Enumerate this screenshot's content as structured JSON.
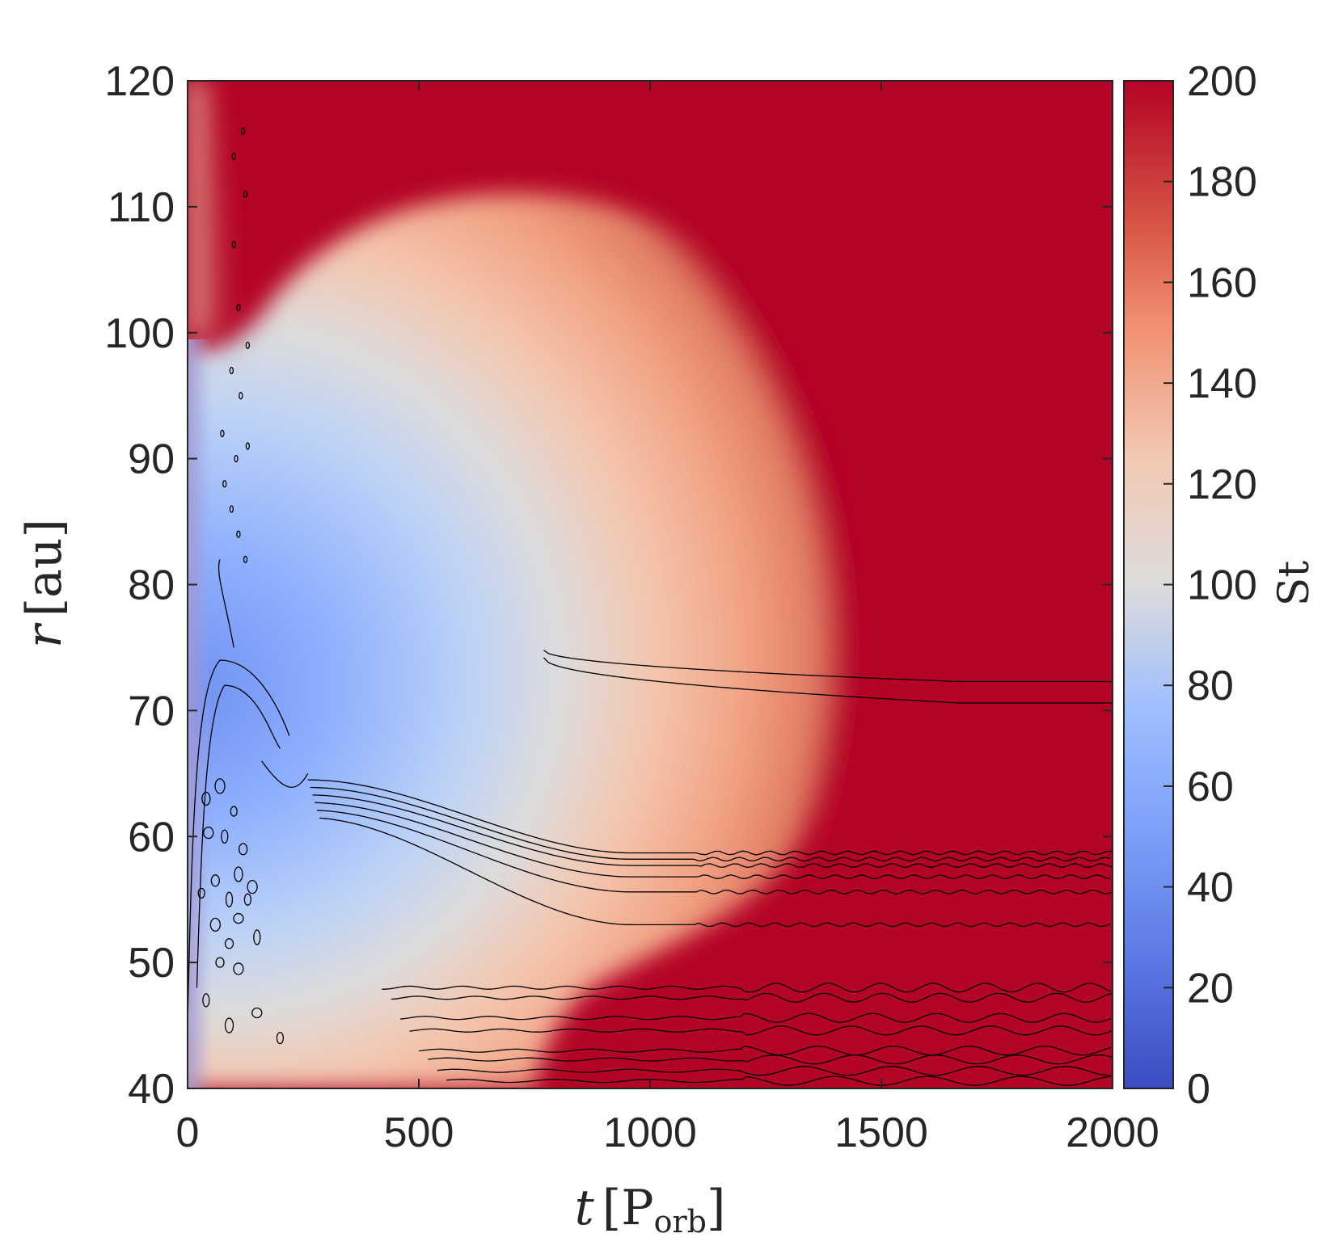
{
  "chart_data": {
    "type": "heatmap",
    "xlabel": {
      "symbol": "t",
      "unit_main": "P",
      "unit_sub": "orb"
    },
    "ylabel": {
      "symbol": "r",
      "unit": "au"
    },
    "xlim": [
      0,
      2000
    ],
    "ylim": [
      40,
      120
    ],
    "xticks": [
      0,
      500,
      1000,
      1500,
      2000
    ],
    "yticks": [
      40,
      50,
      60,
      70,
      80,
      90,
      100,
      110,
      120
    ],
    "colorbar": {
      "label": "St",
      "range": [
        0,
        200
      ],
      "ticks": [
        0,
        20,
        40,
        60,
        80,
        100,
        120,
        140,
        160,
        180,
        200
      ],
      "colormap": [
        "#3b4cc0",
        "#6788ee",
        "#9abbff",
        "#c9d8ef",
        "#dddddd",
        "#f2cbb7",
        "#f7a889",
        "#e26952",
        "#b40426"
      ],
      "saturation_color": "#b40426"
    },
    "field_description": {
      "region_below_saturation_center": {
        "t": 250,
        "r": 70
      },
      "saturated_above": 200
    },
    "contours": {
      "persistent_rings_r": [
        72.3,
        70.6,
        58.7,
        58.2,
        57.7,
        56.8,
        55.6,
        53.0,
        48.0,
        47.2,
        45.6,
        44.6,
        43.0,
        42.3,
        41.4,
        40.6
      ],
      "color": "#000000"
    }
  }
}
